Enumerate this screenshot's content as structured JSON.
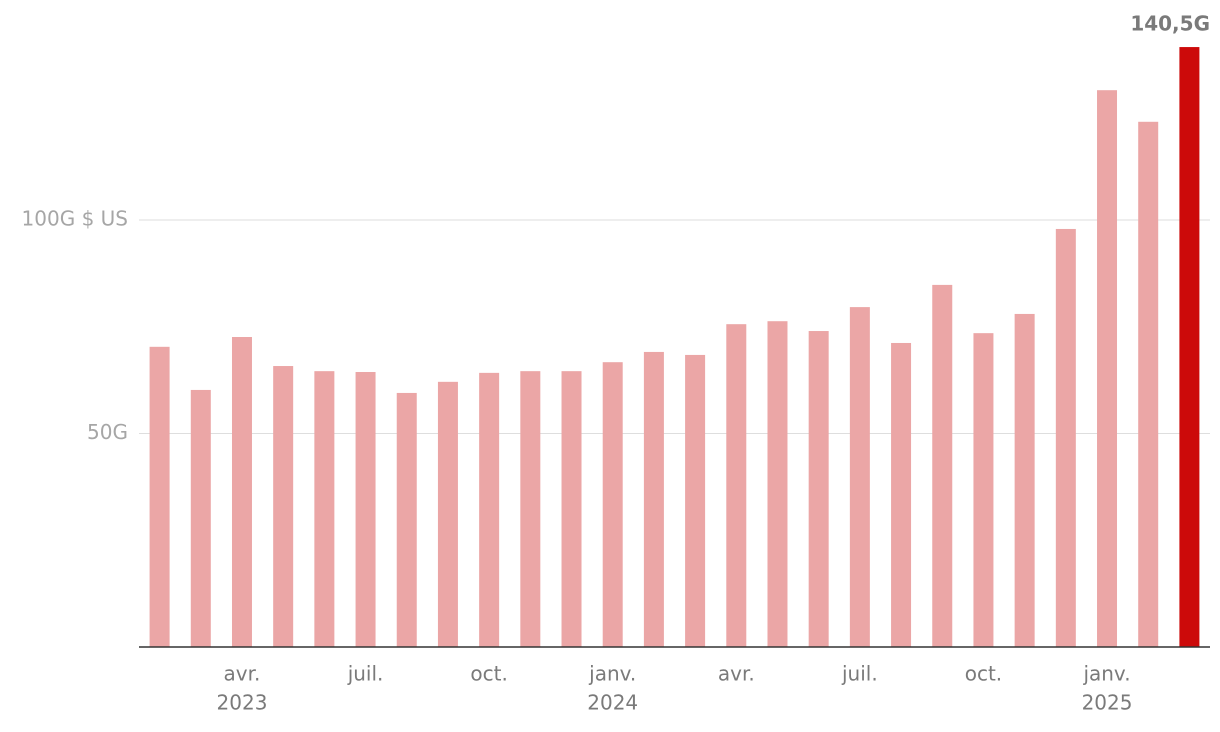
{
  "chart_data": {
    "type": "bar",
    "categories": [
      null,
      null,
      "avr.",
      null,
      null,
      "juil.",
      null,
      null,
      "oct.",
      null,
      null,
      "janv.",
      null,
      null,
      "avr.",
      null,
      null,
      "juil.",
      null,
      null,
      "oct.",
      null,
      null,
      "janv.",
      null,
      null
    ],
    "category_years": [
      null,
      null,
      "2023",
      null,
      null,
      null,
      null,
      null,
      null,
      null,
      null,
      "2024",
      null,
      null,
      null,
      null,
      null,
      null,
      null,
      null,
      null,
      null,
      null,
      "2025",
      null,
      null
    ],
    "values": [
      70.3,
      60.2,
      72.6,
      65.8,
      64.6,
      64.4,
      59.5,
      62.1,
      64.2,
      64.6,
      64.6,
      66.7,
      69.1,
      68.4,
      75.6,
      76.3,
      74.0,
      79.6,
      71.2,
      84.8,
      73.5,
      78.0,
      97.9,
      130.4,
      123.0,
      140.5
    ],
    "value_labels": [
      null,
      null,
      null,
      null,
      null,
      null,
      null,
      null,
      null,
      null,
      null,
      null,
      null,
      null,
      null,
      null,
      null,
      null,
      null,
      null,
      null,
      null,
      null,
      null,
      null,
      "140,5G"
    ],
    "colors": [
      "#eba6a6",
      "#eba6a6",
      "#eba6a6",
      "#eba6a6",
      "#eba6a6",
      "#eba6a6",
      "#eba6a6",
      "#eba6a6",
      "#eba6a6",
      "#eba6a6",
      "#eba6a6",
      "#eba6a6",
      "#eba6a6",
      "#eba6a6",
      "#eba6a6",
      "#eba6a6",
      "#eba6a6",
      "#eba6a6",
      "#eba6a6",
      "#eba6a6",
      "#eba6a6",
      "#eba6a6",
      "#eba6a6",
      "#eba6a6",
      "#eba6a6",
      "#cc0a0a"
    ],
    "ylim": [
      0,
      150
    ],
    "yticks": [
      {
        "value": 50,
        "label": "50G"
      },
      {
        "value": 100,
        "label": "100G $ US"
      }
    ],
    "grid": true
  }
}
